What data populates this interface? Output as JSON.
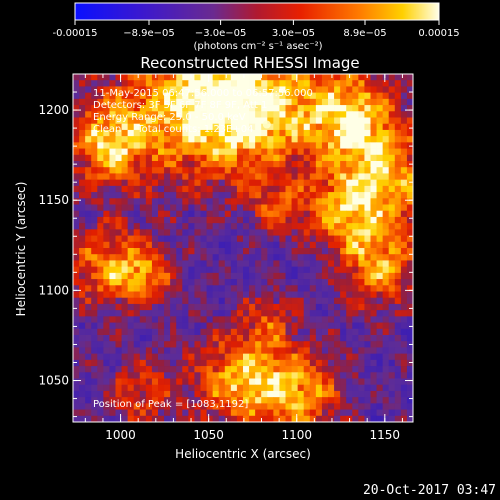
{
  "chart_data": {
    "type": "heatmap",
    "title": "Reconstructed RHESSI Image",
    "xlabel": "Heliocentric X (arcsec)",
    "ylabel": "Heliocentric Y (arcsec)",
    "xlim": [
      973,
      1166
    ],
    "ylim": [
      1027,
      1220
    ],
    "x_ticks": [
      1000,
      1050,
      1100,
      1150
    ],
    "y_ticks": [
      1050,
      1100,
      1150,
      1200
    ],
    "colorbar": {
      "range": [
        -0.00015,
        0.00015
      ],
      "tick_labels": [
        "-0.00015",
        "−8.9e−05",
        "−3.0e−05",
        "3.0e−05",
        "8.9e−05",
        "0.00015"
      ],
      "unit_label": "(photons cm⁻² s⁻¹ asec⁻²)",
      "colormap": "blue-purple-red-orange-yellow-white"
    },
    "info_lines": [
      "11-May-2015 06:47:56.000 to 06:57:56.000",
      "Detectors: 3F 5F 6F 7F 8F 9F, Att 1",
      "Energy Range: 25.0 - 50.0 keV",
      "Clean     Total counts: 1.23E+04"
    ],
    "peak_label": "Position of Peak = [1083,1192]",
    "peak": [
      1083,
      1192
    ],
    "bright_regions_note_free": true
  },
  "footer": {
    "date": "20-Oct-2017 03:47"
  },
  "colors": {
    "background": "#000000",
    "text": "#ffffff",
    "low": "#1a1aff",
    "mid": "#5a2a9a",
    "high": "#ff6000",
    "peak": "#ffffcc"
  }
}
